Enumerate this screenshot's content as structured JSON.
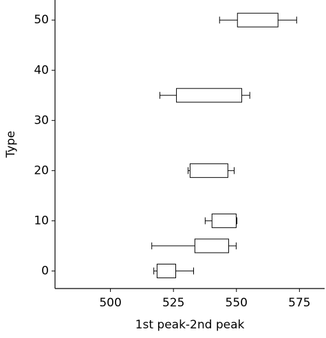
{
  "chart_data": {
    "type": "boxplot",
    "orientation": "horizontal",
    "xlabel": "1st peak-2nd peak",
    "ylabel": "Type",
    "xlim": [
      478,
      585
    ],
    "xticks": [
      500,
      525,
      550,
      575
    ],
    "ylim": [
      -3.5,
      54
    ],
    "yticks": [
      0,
      10,
      20,
      30,
      40,
      50
    ],
    "color": "#000000",
    "boxes": [
      {
        "position": 0,
        "whislo": 517.2,
        "q1": 518.5,
        "q3": 525.9,
        "whishi": 533.0
      },
      {
        "position": 5,
        "whislo": 516.4,
        "q1": 533.5,
        "q3": 546.9,
        "whishi": 549.9
      },
      {
        "position": 10,
        "whislo": 537.6,
        "q1": 540.3,
        "q3": 549.9,
        "whishi": 550.2
      },
      {
        "position": 20,
        "whislo": 530.8,
        "q1": 531.6,
        "q3": 546.6,
        "whishi": 549.1
      },
      {
        "position": 35,
        "whislo": 519.6,
        "q1": 526.2,
        "q3": 552.1,
        "whishi": 555.3
      },
      {
        "position": 50,
        "whislo": 543.3,
        "q1": 550.4,
        "q3": 566.5,
        "whishi": 573.9
      }
    ]
  }
}
